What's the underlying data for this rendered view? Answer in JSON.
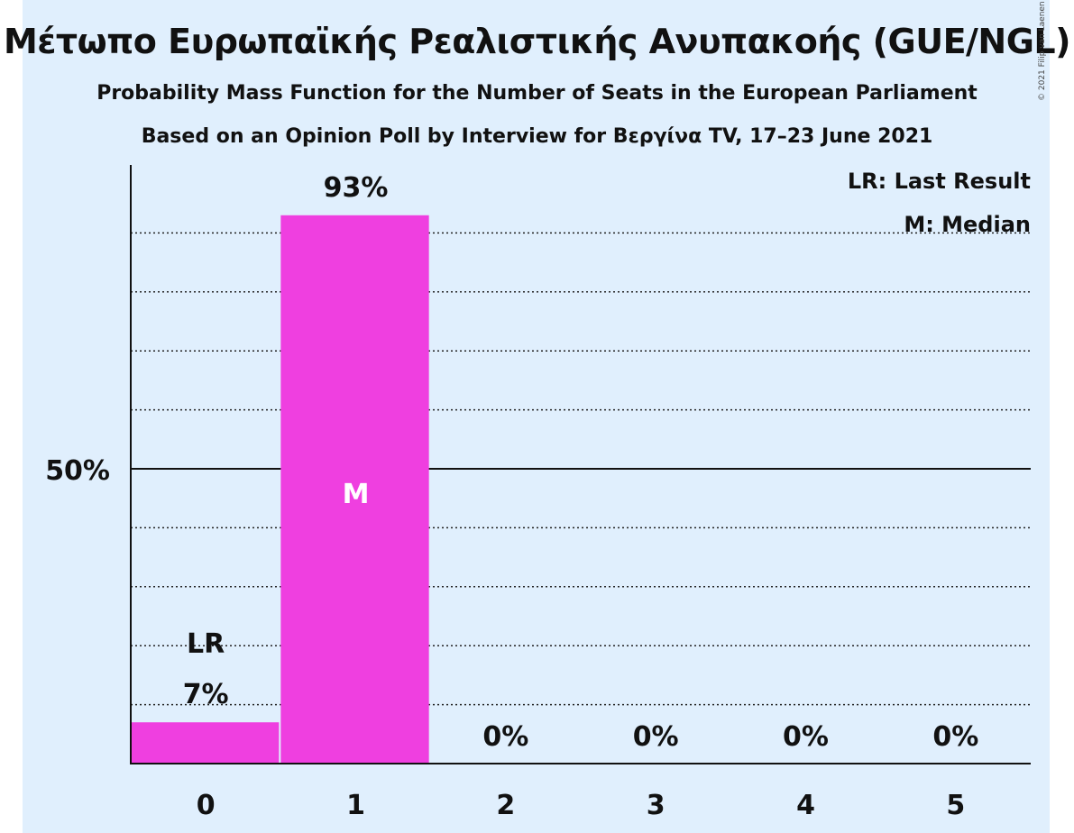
{
  "title": "Μέτωπο Ευρωπαϊκής Ρεαλιστικής Ανυπακοής (GUE/NGL)",
  "subtitle": "Probability Mass Function for the Number of Seats in the European Parliament",
  "subtitle2": "Based on an Opinion Poll by Interview for Βεργίνα TV, 17–23 June 2021",
  "copyright": "© 2021 Filip van Laenen",
  "legend": {
    "lr": "LR: Last Result",
    "m": "M: Median"
  },
  "colors": {
    "bar": "#ef3fe0",
    "background": "#e0effd"
  },
  "chart_data": {
    "type": "bar",
    "categories": [
      "0",
      "1",
      "2",
      "3",
      "4",
      "5"
    ],
    "values": [
      7,
      93,
      0,
      0,
      0,
      0
    ],
    "value_labels": [
      "7%",
      "93%",
      "0%",
      "0%",
      "0%",
      "0%"
    ],
    "ylim": [
      0,
      100
    ],
    "yticks": [
      {
        "value": 50,
        "label": "50%"
      }
    ],
    "gridlines": [
      10,
      20,
      30,
      40,
      60,
      70,
      80,
      90
    ],
    "last_result_index": 0,
    "last_result_label": "LR",
    "median_index": 1,
    "median_label": "M",
    "legend_position": "top-right"
  }
}
